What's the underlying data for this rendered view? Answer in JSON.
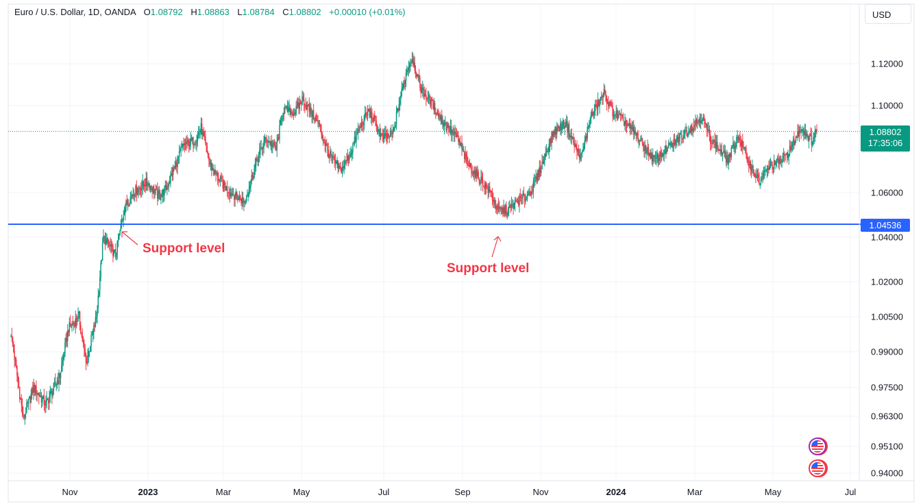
{
  "legend": {
    "symbol": "Euro / U.S. Dollar, 1D, OANDA",
    "open_label": "O",
    "open": "1.08792",
    "high_label": "H",
    "high": "1.08863",
    "low_label": "L",
    "low": "1.08784",
    "close_label": "C",
    "close": "1.08802",
    "change": "+0.00010 (+0.01%)"
  },
  "currency_button": "USD",
  "current_price": {
    "value": "1.08802",
    "countdown": "17:35:06"
  },
  "support_line": {
    "value": 1.04536,
    "label": "1.04536"
  },
  "annotations": [
    "Support level",
    "Support level"
  ],
  "colors": {
    "up": "#089981",
    "down": "#f23645",
    "support": "#2962ff",
    "annotation": "#f23645",
    "grid": "#f0f3fa"
  },
  "chart_data": {
    "type": "candlestick",
    "title": "Euro / U.S. Dollar, 1D, OANDA",
    "y_axis_ticks": [
      1.12,
      1.1,
      1.06,
      1.04,
      1.02,
      1.005,
      0.99,
      0.975,
      0.963,
      0.951,
      0.94
    ],
    "y_tick_labels": [
      "1.12000",
      "1.10000",
      "1.06000",
      "1.04000",
      "1.02000",
      "1.00500",
      "0.99000",
      "0.97500",
      "0.96300",
      "0.95100",
      "0.94000"
    ],
    "x_tick_labels": [
      "Nov",
      "2023",
      "Mar",
      "May",
      "Jul",
      "Sep",
      "Nov",
      "2024",
      "Mar",
      "May",
      "Jul"
    ],
    "bold_x_labels": [
      "2023",
      "2024"
    ],
    "close_path": [
      [
        0,
        0.998
      ],
      [
        14,
        0.962
      ],
      [
        26,
        0.975
      ],
      [
        40,
        0.968
      ],
      [
        56,
        0.98
      ],
      [
        66,
        1.0
      ],
      [
        78,
        1.005
      ],
      [
        86,
        0.985
      ],
      [
        98,
        1.005
      ],
      [
        106,
        1.04
      ],
      [
        120,
        1.032
      ],
      [
        130,
        1.053
      ],
      [
        140,
        1.06
      ],
      [
        156,
        1.065
      ],
      [
        170,
        1.058
      ],
      [
        178,
        1.062
      ],
      [
        188,
        1.072
      ],
      [
        198,
        1.082
      ],
      [
        212,
        1.084
      ],
      [
        218,
        1.09
      ],
      [
        228,
        1.073
      ],
      [
        240,
        1.065
      ],
      [
        252,
        1.06
      ],
      [
        268,
        1.056
      ],
      [
        282,
        1.075
      ],
      [
        292,
        1.085
      ],
      [
        304,
        1.08
      ],
      [
        312,
        1.098
      ],
      [
        326,
        1.097
      ],
      [
        334,
        1.103
      ],
      [
        352,
        1.092
      ],
      [
        364,
        1.078
      ],
      [
        378,
        1.07
      ],
      [
        388,
        1.077
      ],
      [
        398,
        1.088
      ],
      [
        410,
        1.098
      ],
      [
        426,
        1.085
      ],
      [
        438,
        1.087
      ],
      [
        446,
        1.103
      ],
      [
        454,
        1.117
      ],
      [
        460,
        1.123
      ],
      [
        470,
        1.108
      ],
      [
        484,
        1.1
      ],
      [
        496,
        1.092
      ],
      [
        512,
        1.085
      ],
      [
        524,
        1.073
      ],
      [
        540,
        1.065
      ],
      [
        550,
        1.06
      ],
      [
        558,
        1.052
      ],
      [
        570,
        1.052
      ],
      [
        580,
        1.056
      ],
      [
        590,
        1.058
      ],
      [
        598,
        1.062
      ],
      [
        608,
        1.072
      ],
      [
        622,
        1.088
      ],
      [
        636,
        1.092
      ],
      [
        648,
        1.08
      ],
      [
        654,
        1.076
      ],
      [
        664,
        1.094
      ],
      [
        680,
        1.106
      ],
      [
        690,
        1.097
      ],
      [
        702,
        1.093
      ],
      [
        718,
        1.086
      ],
      [
        728,
        1.08
      ],
      [
        738,
        1.075
      ],
      [
        752,
        1.08
      ],
      [
        766,
        1.085
      ],
      [
        780,
        1.09
      ],
      [
        792,
        1.095
      ],
      [
        802,
        1.085
      ],
      [
        812,
        1.08
      ],
      [
        822,
        1.075
      ],
      [
        834,
        1.086
      ],
      [
        846,
        1.074
      ],
      [
        858,
        1.065
      ],
      [
        870,
        1.072
      ],
      [
        884,
        1.075
      ],
      [
        894,
        1.08
      ],
      [
        906,
        1.09
      ],
      [
        918,
        1.084
      ],
      [
        924,
        1.088
      ]
    ]
  }
}
